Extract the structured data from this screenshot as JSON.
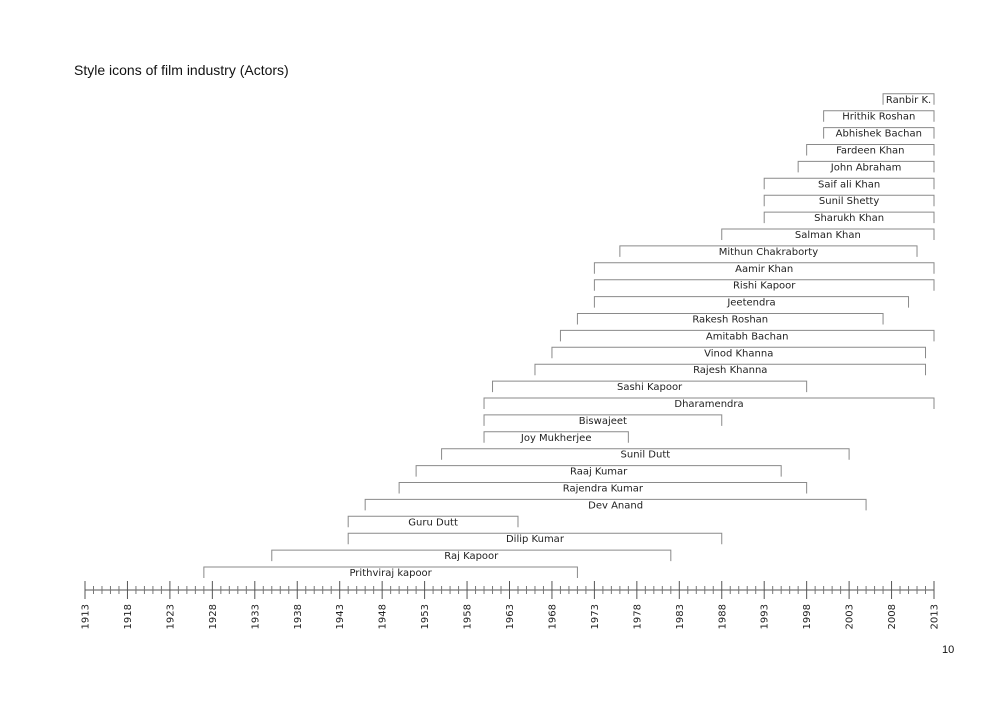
{
  "page": {
    "title": "Style icons of film industry (Actors)",
    "page_number": "10"
  },
  "chart_data": {
    "type": "timeline",
    "title": "Style icons of film industry (Actors)",
    "xlim": [
      1913,
      2013
    ],
    "x_ticks": [
      1913,
      1918,
      1923,
      1928,
      1933,
      1938,
      1943,
      1948,
      1953,
      1958,
      1963,
      1968,
      1973,
      1978,
      1983,
      1988,
      1993,
      1998,
      2003,
      2008,
      2013
    ],
    "x_tick_labels": [
      "1913",
      "1918",
      "1923",
      "1928",
      "1933",
      "1938",
      "1943",
      "1948",
      "1953",
      "1958",
      "1963",
      "1968",
      "1973",
      "1978",
      "1983",
      "1988",
      "1993",
      "1998",
      "2003",
      "2008",
      "2013"
    ],
    "minor_tick_step": 1,
    "colors": {
      "bar": "#8a8a8a",
      "axis": "#555555",
      "text": "#222222"
    },
    "bars": [
      {
        "name": "Prithviraj kapoor",
        "start": 1927,
        "end": 1971
      },
      {
        "name": "Raj Kapoor",
        "start": 1935,
        "end": 1982
      },
      {
        "name": "Dilip Kumar",
        "start": 1944,
        "end": 1988
      },
      {
        "name": "Guru Dutt",
        "start": 1944,
        "end": 1964
      },
      {
        "name": "Dev Anand",
        "start": 1946,
        "end": 2005
      },
      {
        "name": "Rajendra Kumar",
        "start": 1950,
        "end": 1998
      },
      {
        "name": "Raaj Kumar",
        "start": 1952,
        "end": 1995
      },
      {
        "name": "Sunil Dutt",
        "start": 1955,
        "end": 2003
      },
      {
        "name": "Joy Mukherjee",
        "start": 1960,
        "end": 1977
      },
      {
        "name": "Biswajeet",
        "start": 1960,
        "end": 1988
      },
      {
        "name": "Dharamendra",
        "start": 1960,
        "end": 2013
      },
      {
        "name": "Sashi Kapoor",
        "start": 1961,
        "end": 1998
      },
      {
        "name": "Rajesh Khanna",
        "start": 1966,
        "end": 2012
      },
      {
        "name": "Vinod Khanna",
        "start": 1968,
        "end": 2012
      },
      {
        "name": "Amitabh Bachan",
        "start": 1969,
        "end": 2013
      },
      {
        "name": "Rakesh Roshan",
        "start": 1971,
        "end": 2007
      },
      {
        "name": "Jeetendra",
        "start": 1973,
        "end": 2010
      },
      {
        "name": "Rishi Kapoor",
        "start": 1973,
        "end": 2013
      },
      {
        "name": "Aamir Khan",
        "start": 1973,
        "end": 2013
      },
      {
        "name": "Mithun Chakraborty",
        "start": 1976,
        "end": 2011
      },
      {
        "name": "Salman Khan",
        "start": 1988,
        "end": 2013
      },
      {
        "name": "Sharukh Khan",
        "start": 1993,
        "end": 2013
      },
      {
        "name": "Sunil Shetty",
        "start": 1993,
        "end": 2013
      },
      {
        "name": "Saif ali Khan",
        "start": 1993,
        "end": 2013
      },
      {
        "name": "John Abraham",
        "start": 1997,
        "end": 2013
      },
      {
        "name": "Fardeen Khan",
        "start": 1998,
        "end": 2013
      },
      {
        "name": "Abhishek Bachan",
        "start": 2000,
        "end": 2013
      },
      {
        "name": "Hrithik Roshan",
        "start": 2000,
        "end": 2013
      },
      {
        "name": "Ranbir K.",
        "start": 2007,
        "end": 2013
      }
    ]
  }
}
